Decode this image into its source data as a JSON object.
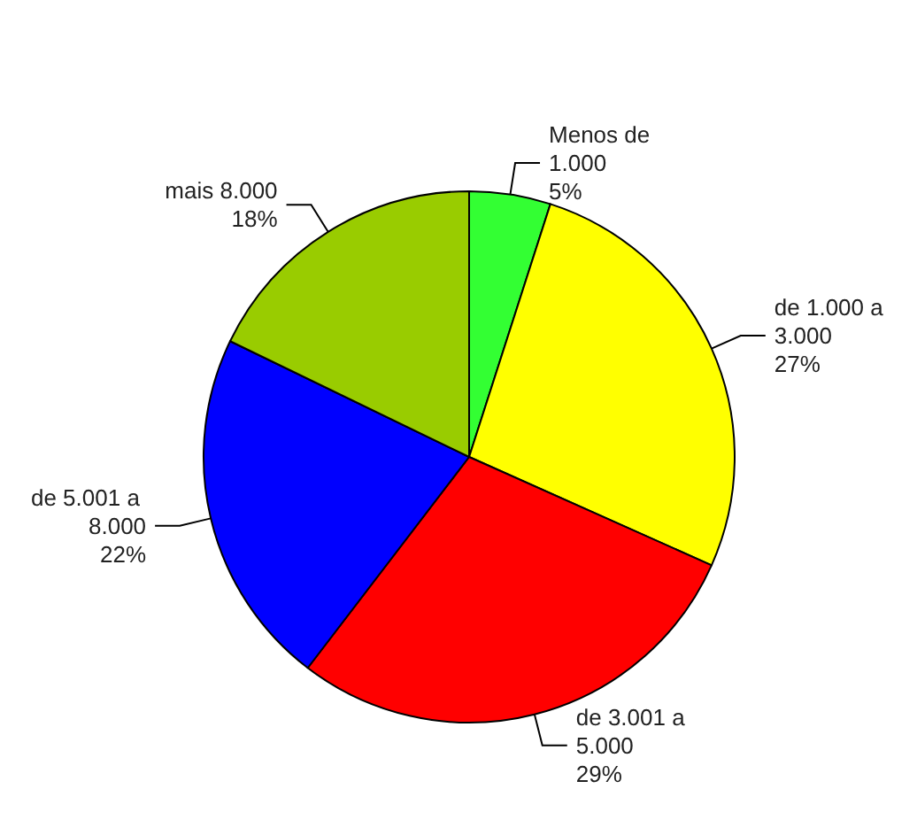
{
  "chart_data": {
    "type": "pie",
    "categories": [
      "Menos de 1.000",
      "de 1.000 a 3.000",
      "de 3.001 a 5.000",
      "de 5.001 a 8.000",
      "mais 8.000"
    ],
    "values": [
      5,
      27,
      29,
      22,
      18
    ],
    "value_labels": [
      "5%",
      "27%",
      "29%",
      "22%",
      "18%"
    ],
    "colors": [
      "#33ff33",
      "#ffff00",
      "#ff0000",
      "#0000ff",
      "#99cc00"
    ],
    "legend": false
  }
}
